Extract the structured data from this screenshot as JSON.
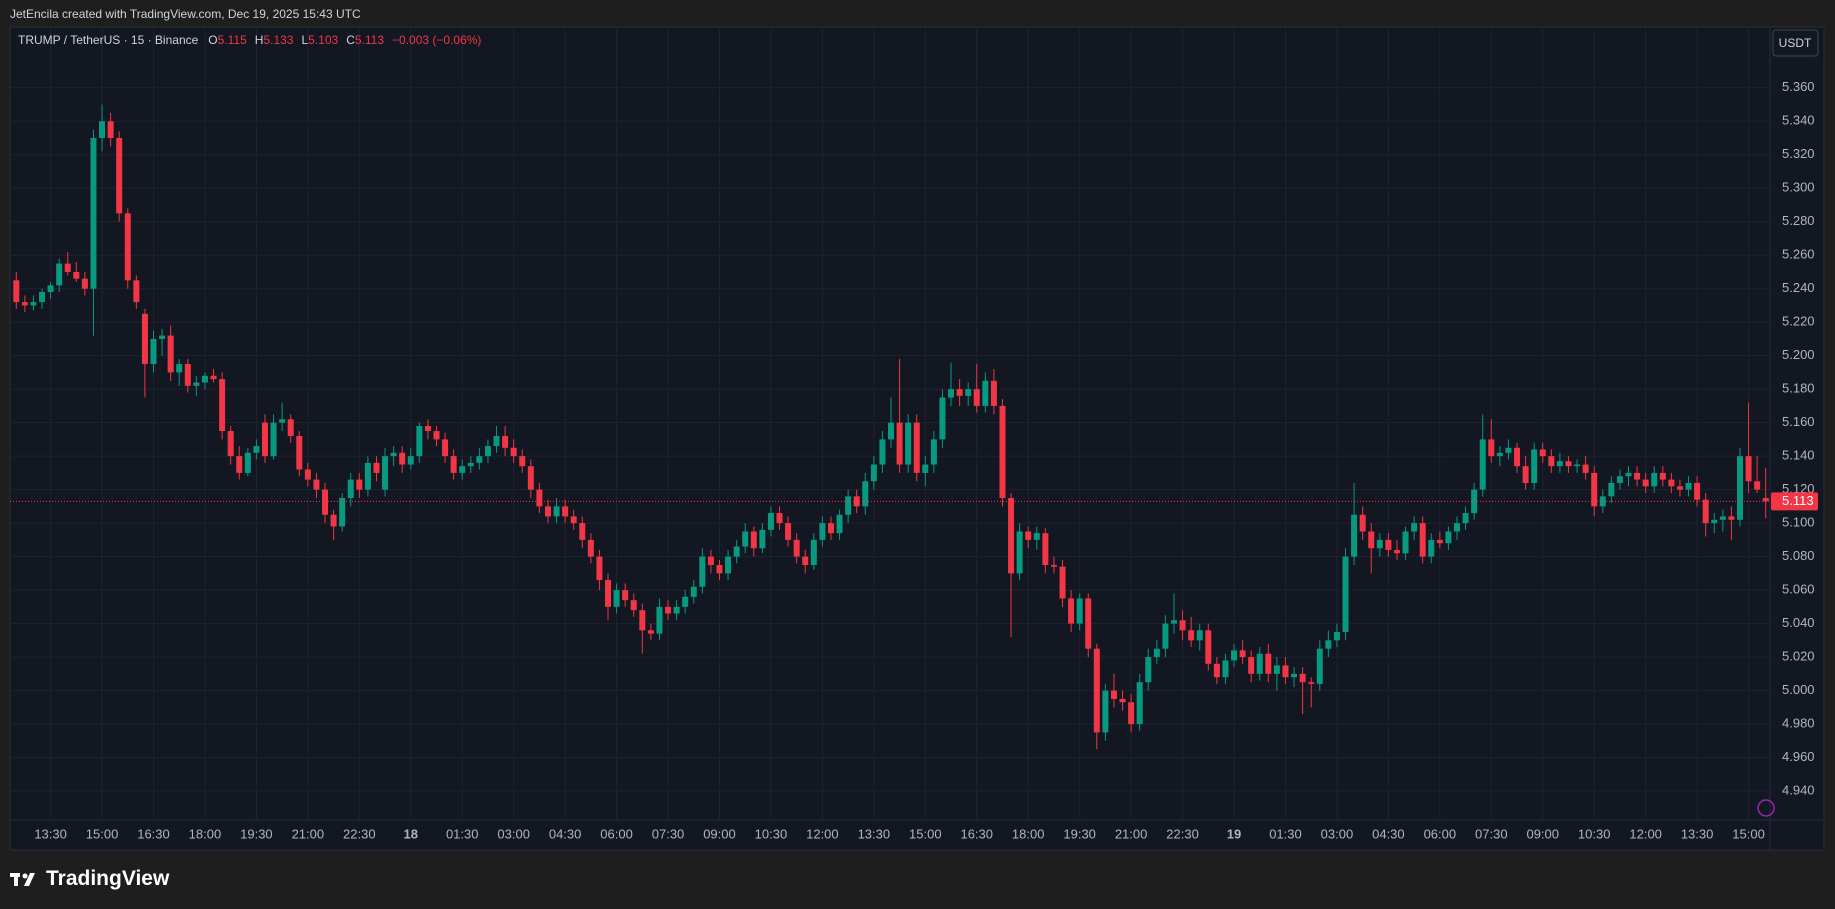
{
  "header": {
    "attribution": "JetEncila created with TradingView.com, Dec 19, 2025 15:43 UTC"
  },
  "footer": {
    "brand": "TradingView"
  },
  "chart_data": {
    "type": "candlestick",
    "title": "TRUMP / TetherUS · 15 · Binance",
    "ohlc_labels": [
      "O",
      "H",
      "L",
      "C"
    ],
    "change": "−0.003 (−0.06%)",
    "currency": "USDT",
    "up_color": "#089981",
    "down_color": "#f23645",
    "grid": true,
    "ylim": [
      4.9227,
      5.3963
    ],
    "yticks": [
      {
        "value": 4.94,
        "label": "4.940"
      },
      {
        "value": 4.96,
        "label": "4.960"
      },
      {
        "value": 4.98,
        "label": "4.980"
      },
      {
        "value": 5.0,
        "label": "5.000"
      },
      {
        "value": 5.02,
        "label": "5.020"
      },
      {
        "value": 5.04,
        "label": "5.040"
      },
      {
        "value": 5.06,
        "label": "5.060"
      },
      {
        "value": 5.08,
        "label": "5.080"
      },
      {
        "value": 5.1,
        "label": "5.100"
      },
      {
        "value": 5.12,
        "label": "5.120"
      },
      {
        "value": 5.14,
        "label": "5.140"
      },
      {
        "value": 5.16,
        "label": "5.160"
      },
      {
        "value": 5.18,
        "label": "5.180"
      },
      {
        "value": 5.2,
        "label": "5.200"
      },
      {
        "value": 5.22,
        "label": "5.220"
      },
      {
        "value": 5.24,
        "label": "5.240"
      },
      {
        "value": 5.26,
        "label": "5.260"
      },
      {
        "value": 5.28,
        "label": "5.280"
      },
      {
        "value": 5.3,
        "label": "5.300"
      },
      {
        "value": 5.32,
        "label": "5.320"
      },
      {
        "value": 5.34,
        "label": "5.340"
      },
      {
        "value": 5.36,
        "label": "5.360"
      }
    ],
    "categories": [
      null,
      null,
      null,
      null,
      "13:30",
      null,
      null,
      null,
      null,
      null,
      "15:00",
      null,
      null,
      null,
      null,
      null,
      "16:30",
      null,
      null,
      null,
      null,
      null,
      "18:00",
      null,
      null,
      null,
      null,
      null,
      "19:30",
      null,
      null,
      null,
      null,
      null,
      "21:00",
      null,
      null,
      null,
      null,
      null,
      "22:30",
      null,
      null,
      null,
      null,
      null,
      "18",
      null,
      null,
      null,
      null,
      null,
      "01:30",
      null,
      null,
      null,
      null,
      null,
      "03:00",
      null,
      null,
      null,
      null,
      null,
      "04:30",
      null,
      null,
      null,
      null,
      null,
      "06:00",
      null,
      null,
      null,
      null,
      null,
      "07:30",
      null,
      null,
      null,
      null,
      null,
      "09:00",
      null,
      null,
      null,
      null,
      null,
      "10:30",
      null,
      null,
      null,
      null,
      null,
      "12:00",
      null,
      null,
      null,
      null,
      null,
      "13:30",
      null,
      null,
      null,
      null,
      null,
      "15:00",
      null,
      null,
      null,
      null,
      null,
      "16:30",
      null,
      null,
      null,
      null,
      null,
      "18:00",
      null,
      null,
      null,
      null,
      null,
      "19:30",
      null,
      null,
      null,
      null,
      null,
      "21:00",
      null,
      null,
      null,
      null,
      null,
      "22:30",
      null,
      null,
      null,
      null,
      null,
      "19",
      null,
      null,
      null,
      null,
      null,
      "01:30",
      null,
      null,
      null,
      null,
      null,
      "03:00",
      null,
      null,
      null,
      null,
      null,
      "04:30",
      null,
      null,
      null,
      null,
      null,
      "06:00",
      null,
      null,
      null,
      null,
      null,
      "07:30",
      null,
      null,
      null,
      null,
      null,
      "09:00",
      null,
      null,
      null,
      null,
      null,
      "10:30",
      null,
      null,
      null,
      null,
      null,
      "12:00",
      null,
      null,
      null,
      null,
      null,
      "13:30",
      null,
      null,
      null,
      null,
      null,
      "15:00",
      null,
      null
    ],
    "values": [
      [
        5.245,
        5.25,
        5.228,
        5.232
      ],
      [
        5.232,
        5.236,
        5.226,
        5.23
      ],
      [
        5.23,
        5.236,
        5.227,
        5.232
      ],
      [
        5.232,
        5.24,
        5.228,
        5.238
      ],
      [
        5.238,
        5.244,
        5.234,
        5.242
      ],
      [
        5.242,
        5.258,
        5.238,
        5.255
      ],
      [
        5.255,
        5.262,
        5.248,
        5.25
      ],
      [
        5.25,
        5.256,
        5.244,
        5.246
      ],
      [
        5.246,
        5.25,
        5.236,
        5.24
      ],
      [
        5.24,
        5.335,
        5.212,
        5.33
      ],
      [
        5.33,
        5.35,
        5.322,
        5.34
      ],
      [
        5.34,
        5.345,
        5.325,
        5.33
      ],
      [
        5.33,
        5.334,
        5.28,
        5.285
      ],
      [
        5.285,
        5.288,
        5.24,
        5.245
      ],
      [
        5.245,
        5.248,
        5.228,
        5.232
      ],
      [
        5.225,
        5.228,
        5.175,
        5.195
      ],
      [
        5.195,
        5.215,
        5.19,
        5.21
      ],
      [
        5.21,
        5.216,
        5.2,
        5.212
      ],
      [
        5.212,
        5.218,
        5.185,
        5.19
      ],
      [
        5.19,
        5.198,
        5.182,
        5.195
      ],
      [
        5.195,
        5.198,
        5.178,
        5.182
      ],
      [
        5.182,
        5.188,
        5.176,
        5.184
      ],
      [
        5.184,
        5.19,
        5.18,
        5.188
      ],
      [
        5.188,
        5.192,
        5.184,
        5.186
      ],
      [
        5.186,
        5.19,
        5.15,
        5.155
      ],
      [
        5.155,
        5.158,
        5.135,
        5.14
      ],
      [
        5.14,
        5.146,
        5.126,
        5.13
      ],
      [
        5.13,
        5.145,
        5.128,
        5.142
      ],
      [
        5.142,
        5.15,
        5.138,
        5.146
      ],
      [
        5.16,
        5.165,
        5.136,
        5.14
      ],
      [
        5.14,
        5.165,
        5.138,
        5.16
      ],
      [
        5.16,
        5.172,
        5.155,
        5.162
      ],
      [
        5.162,
        5.165,
        5.148,
        5.152
      ],
      [
        5.152,
        5.155,
        5.128,
        5.132
      ],
      [
        5.132,
        5.136,
        5.122,
        5.126
      ],
      [
        5.126,
        5.13,
        5.115,
        5.12
      ],
      [
        5.12,
        5.124,
        5.1,
        5.105
      ],
      [
        5.105,
        5.108,
        5.09,
        5.098
      ],
      [
        5.098,
        5.118,
        5.095,
        5.115
      ],
      [
        5.115,
        5.13,
        5.11,
        5.126
      ],
      [
        5.126,
        5.13,
        5.115,
        5.12
      ],
      [
        5.12,
        5.14,
        5.116,
        5.136
      ],
      [
        5.136,
        5.14,
        5.125,
        5.13
      ],
      [
        5.12,
        5.145,
        5.116,
        5.14
      ],
      [
        5.14,
        5.146,
        5.134,
        5.142
      ],
      [
        5.142,
        5.146,
        5.13,
        5.135
      ],
      [
        5.135,
        5.145,
        5.132,
        5.14
      ],
      [
        5.14,
        5.16,
        5.136,
        5.158
      ],
      [
        5.158,
        5.162,
        5.15,
        5.155
      ],
      [
        5.155,
        5.158,
        5.146,
        5.15
      ],
      [
        5.15,
        5.154,
        5.136,
        5.14
      ],
      [
        5.14,
        5.144,
        5.126,
        5.13
      ],
      [
        5.13,
        5.138,
        5.126,
        5.134
      ],
      [
        5.134,
        5.14,
        5.13,
        5.136
      ],
      [
        5.136,
        5.145,
        5.132,
        5.14
      ],
      [
        5.14,
        5.15,
        5.136,
        5.146
      ],
      [
        5.146,
        5.158,
        5.142,
        5.152
      ],
      [
        5.152,
        5.158,
        5.14,
        5.145
      ],
      [
        5.145,
        5.15,
        5.136,
        5.14
      ],
      [
        5.14,
        5.144,
        5.13,
        5.134
      ],
      [
        5.134,
        5.138,
        5.115,
        5.12
      ],
      [
        5.12,
        5.124,
        5.106,
        5.11
      ],
      [
        5.11,
        5.114,
        5.1,
        5.104
      ],
      [
        5.104,
        5.115,
        5.1,
        5.11
      ],
      [
        5.11,
        5.114,
        5.1,
        5.104
      ],
      [
        5.104,
        5.108,
        5.096,
        5.1
      ],
      [
        5.1,
        5.104,
        5.085,
        5.09
      ],
      [
        5.09,
        5.094,
        5.076,
        5.08
      ],
      [
        5.08,
        5.084,
        5.06,
        5.066
      ],
      [
        5.066,
        5.07,
        5.042,
        5.05
      ],
      [
        5.05,
        5.064,
        5.046,
        5.06
      ],
      [
        5.06,
        5.064,
        5.05,
        5.054
      ],
      [
        5.054,
        5.058,
        5.044,
        5.048
      ],
      [
        5.048,
        5.052,
        5.022,
        5.036
      ],
      [
        5.036,
        5.04,
        5.03,
        5.034
      ],
      [
        5.034,
        5.055,
        5.03,
        5.05
      ],
      [
        5.05,
        5.054,
        5.042,
        5.046
      ],
      [
        5.046,
        5.054,
        5.042,
        5.05
      ],
      [
        5.05,
        5.06,
        5.046,
        5.056
      ],
      [
        5.056,
        5.066,
        5.052,
        5.062
      ],
      [
        5.062,
        5.085,
        5.058,
        5.08
      ],
      [
        5.08,
        5.084,
        5.07,
        5.075
      ],
      [
        5.075,
        5.078,
        5.066,
        5.07
      ],
      [
        5.07,
        5.084,
        5.066,
        5.08
      ],
      [
        5.08,
        5.09,
        5.076,
        5.086
      ],
      [
        5.086,
        5.1,
        5.082,
        5.095
      ],
      [
        5.095,
        5.098,
        5.08,
        5.085
      ],
      [
        5.085,
        5.1,
        5.082,
        5.096
      ],
      [
        5.096,
        5.11,
        5.092,
        5.106
      ],
      [
        5.106,
        5.11,
        5.096,
        5.1
      ],
      [
        5.1,
        5.104,
        5.086,
        5.09
      ],
      [
        5.09,
        5.094,
        5.076,
        5.08
      ],
      [
        5.08,
        5.084,
        5.07,
        5.075
      ],
      [
        5.075,
        5.094,
        5.072,
        5.09
      ],
      [
        5.09,
        5.104,
        5.086,
        5.1
      ],
      [
        5.1,
        5.104,
        5.09,
        5.094
      ],
      [
        5.094,
        5.108,
        5.09,
        5.105
      ],
      [
        5.105,
        5.12,
        5.1,
        5.116
      ],
      [
        5.116,
        5.12,
        5.106,
        5.11
      ],
      [
        5.11,
        5.13,
        5.105,
        5.125
      ],
      [
        5.125,
        5.14,
        5.12,
        5.135
      ],
      [
        5.135,
        5.155,
        5.13,
        5.15
      ],
      [
        5.15,
        5.175,
        5.145,
        5.16
      ],
      [
        5.16,
        5.198,
        5.13,
        5.135
      ],
      [
        5.135,
        5.165,
        5.13,
        5.16
      ],
      [
        5.16,
        5.165,
        5.125,
        5.13
      ],
      [
        5.13,
        5.14,
        5.122,
        5.135
      ],
      [
        5.135,
        5.155,
        5.13,
        5.15
      ],
      [
        5.15,
        5.18,
        5.145,
        5.175
      ],
      [
        5.175,
        5.196,
        5.17,
        5.18
      ],
      [
        5.18,
        5.186,
        5.17,
        5.176
      ],
      [
        5.176,
        5.184,
        5.17,
        5.18
      ],
      [
        5.18,
        5.195,
        5.166,
        5.17
      ],
      [
        5.17,
        5.19,
        5.166,
        5.185
      ],
      [
        5.185,
        5.192,
        5.165,
        5.17
      ],
      [
        5.17,
        5.174,
        5.11,
        5.115
      ],
      [
        5.115,
        5.118,
        5.032,
        5.07
      ],
      [
        5.07,
        5.1,
        5.066,
        5.095
      ],
      [
        5.095,
        5.098,
        5.085,
        5.09
      ],
      [
        5.09,
        5.098,
        5.084,
        5.094
      ],
      [
        5.094,
        5.097,
        5.07,
        5.075
      ],
      [
        5.075,
        5.08,
        5.07,
        5.074
      ],
      [
        5.074,
        5.078,
        5.05,
        5.055
      ],
      [
        5.055,
        5.06,
        5.035,
        5.04
      ],
      [
        5.04,
        5.058,
        5.036,
        5.055
      ],
      [
        5.055,
        5.058,
        5.02,
        5.025
      ],
      [
        5.025,
        5.028,
        4.965,
        4.975
      ],
      [
        4.975,
        5.004,
        4.97,
        5.0
      ],
      [
        5.0,
        5.01,
        4.99,
        4.995
      ],
      [
        4.995,
        5.0,
        4.988,
        4.993
      ],
      [
        4.993,
        4.998,
        4.975,
        4.98
      ],
      [
        4.98,
        5.01,
        4.976,
        5.005
      ],
      [
        5.005,
        5.025,
        5.0,
        5.02
      ],
      [
        5.02,
        5.03,
        5.016,
        5.025
      ],
      [
        5.025,
        5.045,
        5.02,
        5.04
      ],
      [
        5.04,
        5.058,
        5.034,
        5.042
      ],
      [
        5.042,
        5.048,
        5.03,
        5.036
      ],
      [
        5.036,
        5.044,
        5.026,
        5.03
      ],
      [
        5.03,
        5.04,
        5.024,
        5.036
      ],
      [
        5.036,
        5.04,
        5.012,
        5.016
      ],
      [
        5.016,
        5.02,
        5.004,
        5.008
      ],
      [
        5.008,
        5.022,
        5.004,
        5.018
      ],
      [
        5.018,
        5.028,
        5.014,
        5.024
      ],
      [
        5.024,
        5.03,
        5.016,
        5.02
      ],
      [
        5.02,
        5.024,
        5.005,
        5.01
      ],
      [
        5.01,
        5.026,
        5.006,
        5.022
      ],
      [
        5.022,
        5.028,
        5.005,
        5.01
      ],
      [
        5.01,
        5.02,
        5.0,
        5.015
      ],
      [
        5.015,
        5.02,
        5.004,
        5.008
      ],
      [
        5.008,
        5.014,
        5.002,
        5.01
      ],
      [
        5.01,
        5.014,
        4.986,
        5.005
      ],
      [
        5.005,
        5.008,
        4.99,
        5.004
      ],
      [
        5.004,
        5.03,
        5.0,
        5.025
      ],
      [
        5.025,
        5.036,
        5.02,
        5.03
      ],
      [
        5.03,
        5.04,
        5.026,
        5.035
      ],
      [
        5.035,
        5.085,
        5.03,
        5.08
      ],
      [
        5.08,
        5.124,
        5.075,
        5.105
      ],
      [
        5.105,
        5.11,
        5.09,
        5.095
      ],
      [
        5.095,
        5.1,
        5.07,
        5.085
      ],
      [
        5.085,
        5.094,
        5.08,
        5.09
      ],
      [
        5.09,
        5.094,
        5.08,
        5.084
      ],
      [
        5.084,
        5.09,
        5.078,
        5.082
      ],
      [
        5.082,
        5.098,
        5.078,
        5.095
      ],
      [
        5.095,
        5.104,
        5.09,
        5.1
      ],
      [
        5.1,
        5.104,
        5.076,
        5.08
      ],
      [
        5.08,
        5.094,
        5.076,
        5.09
      ],
      [
        5.09,
        5.095,
        5.085,
        5.088
      ],
      [
        5.088,
        5.098,
        5.084,
        5.095
      ],
      [
        5.095,
        5.104,
        5.09,
        5.1
      ],
      [
        5.1,
        5.11,
        5.096,
        5.106
      ],
      [
        5.106,
        5.124,
        5.102,
        5.12
      ],
      [
        5.12,
        5.165,
        5.116,
        5.15
      ],
      [
        5.15,
        5.162,
        5.136,
        5.14
      ],
      [
        5.14,
        5.146,
        5.134,
        5.142
      ],
      [
        5.142,
        5.15,
        5.138,
        5.145
      ],
      [
        5.145,
        5.148,
        5.13,
        5.134
      ],
      [
        5.134,
        5.14,
        5.12,
        5.124
      ],
      [
        5.124,
        5.148,
        5.12,
        5.144
      ],
      [
        5.144,
        5.148,
        5.136,
        5.14
      ],
      [
        5.14,
        5.144,
        5.13,
        5.134
      ],
      [
        5.134,
        5.142,
        5.13,
        5.137
      ],
      [
        5.137,
        5.14,
        5.13,
        5.134
      ],
      [
        5.134,
        5.138,
        5.13,
        5.135
      ],
      [
        5.135,
        5.14,
        5.126,
        5.13
      ],
      [
        5.13,
        5.134,
        5.104,
        5.11
      ],
      [
        5.11,
        5.12,
        5.106,
        5.116
      ],
      [
        5.116,
        5.128,
        5.112,
        5.124
      ],
      [
        5.124,
        5.132,
        5.12,
        5.128
      ],
      [
        5.128,
        5.134,
        5.122,
        5.13
      ],
      [
        5.13,
        5.134,
        5.122,
        5.126
      ],
      [
        5.126,
        5.13,
        5.118,
        5.122
      ],
      [
        5.122,
        5.134,
        5.118,
        5.13
      ],
      [
        5.13,
        5.134,
        5.122,
        5.126
      ],
      [
        5.126,
        5.13,
        5.118,
        5.122
      ],
      [
        5.122,
        5.126,
        5.116,
        5.12
      ],
      [
        5.12,
        5.128,
        5.116,
        5.124
      ],
      [
        5.124,
        5.128,
        5.11,
        5.114
      ],
      [
        5.114,
        5.118,
        5.092,
        5.1
      ],
      [
        5.1,
        5.106,
        5.094,
        5.102
      ],
      [
        5.102,
        5.108,
        5.095,
        5.104
      ],
      [
        5.104,
        5.11,
        5.09,
        5.102
      ],
      [
        5.102,
        5.145,
        5.098,
        5.14
      ],
      [
        5.14,
        5.172,
        5.118,
        5.125
      ],
      [
        5.125,
        5.14,
        5.118,
        5.12
      ],
      [
        5.115,
        5.133,
        5.103,
        5.113
      ]
    ]
  }
}
